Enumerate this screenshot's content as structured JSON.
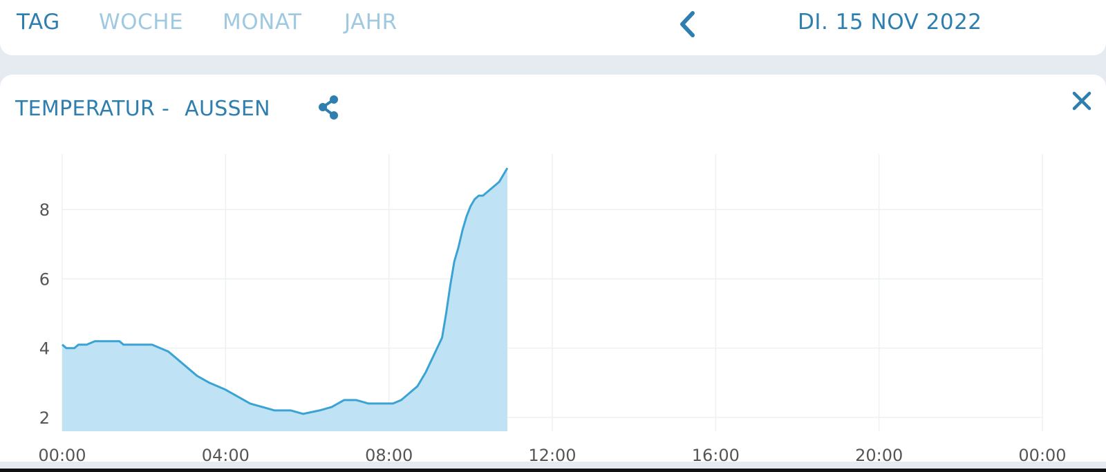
{
  "tabs": [
    {
      "label": "TAG",
      "active": true
    },
    {
      "label": "WOCHE",
      "active": false
    },
    {
      "label": "MONAT",
      "active": false
    },
    {
      "label": "JAHR",
      "active": false
    }
  ],
  "date_label": "DI. 15 NOV 2022",
  "icons": {
    "prev": "chevron-left-icon",
    "share": "share-icon",
    "close": "close-icon"
  },
  "card": {
    "title_prefix": "TEMPERATUR -",
    "title_location": "AUSSEN"
  },
  "colors": {
    "accent": "#2e7fb0",
    "tab_inactive": "#9fc9e0",
    "line": "#3aa3d4",
    "fill": "#bfe3f5"
  },
  "chart_data": {
    "type": "area",
    "title": "",
    "xlabel": "",
    "ylabel": "",
    "x_ticks": [
      "00:00",
      "04:00",
      "08:00",
      "12:00",
      "16:00",
      "20:00",
      "00:00"
    ],
    "y_ticks": [
      2,
      4,
      6,
      8
    ],
    "xlim_hours": [
      0,
      24
    ],
    "ylim": [
      1.6,
      9.6
    ],
    "grid": true,
    "series": [
      {
        "x_hours": [
          0.0,
          0.1,
          0.3,
          0.4,
          0.6,
          0.8,
          1.0,
          1.2,
          1.4,
          1.5,
          2.2,
          2.4,
          2.6,
          2.8,
          3.0,
          3.3,
          3.6,
          4.0,
          4.3,
          4.6,
          4.9,
          5.2,
          5.6,
          5.9,
          6.3,
          6.6,
          6.9,
          7.2,
          7.5,
          7.9,
          8.1,
          8.3,
          8.5,
          8.7,
          8.9,
          9.1,
          9.3,
          9.4,
          9.5,
          9.6,
          9.7,
          9.8,
          9.9,
          10.0,
          10.1,
          10.2,
          10.3,
          10.5,
          10.7,
          10.9
        ],
        "y": [
          4.1,
          4.0,
          4.0,
          4.1,
          4.1,
          4.2,
          4.2,
          4.2,
          4.2,
          4.1,
          4.1,
          4.0,
          3.9,
          3.7,
          3.5,
          3.2,
          3.0,
          2.8,
          2.6,
          2.4,
          2.3,
          2.2,
          2.2,
          2.1,
          2.2,
          2.3,
          2.5,
          2.5,
          2.4,
          2.4,
          2.4,
          2.5,
          2.7,
          2.9,
          3.3,
          3.8,
          4.3,
          5.0,
          5.8,
          6.5,
          6.9,
          7.4,
          7.8,
          8.1,
          8.3,
          8.4,
          8.4,
          8.6,
          8.8,
          9.2
        ]
      }
    ]
  }
}
